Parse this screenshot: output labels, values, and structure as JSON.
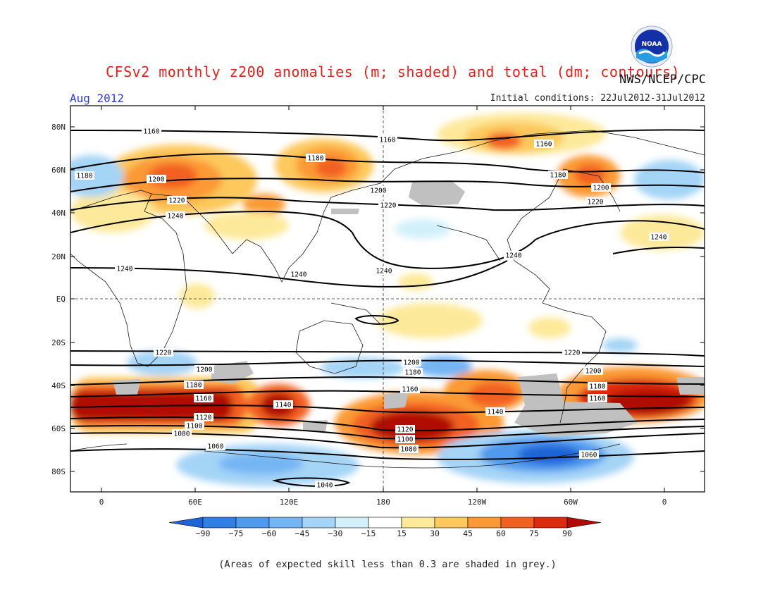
{
  "header": {
    "title": "CFSv2 monthly z200 anomalies (m; shaded) and total (dm; contours)",
    "month": "Aug 2012",
    "agency": "NWS/NCEP/CPC",
    "initial_conditions": "Initial conditions: 22Jul2012-31Jul2012",
    "logo_text": "NOAA"
  },
  "axes": {
    "lat_ticks": [
      "80N",
      "60N",
      "40N",
      "20N",
      "EQ",
      "20S",
      "40S",
      "60S",
      "80S"
    ],
    "lon_ticks": [
      "0",
      "60E",
      "120E",
      "180",
      "120W",
      "60W",
      "0"
    ]
  },
  "colorbar": {
    "levels": [
      "-90",
      "-75",
      "-60",
      "-45",
      "-30",
      "-15",
      "15",
      "30",
      "45",
      "60",
      "75",
      "90"
    ],
    "colors": [
      "#1e64d6",
      "#2f7fe6",
      "#4f99ee",
      "#74b5f4",
      "#a4d4f6",
      "#d2f0fa",
      "#ffffff",
      "#fde99a",
      "#fdc85c",
      "#fb9a34",
      "#f26021",
      "#dc2a0f",
      "#b00a05"
    ]
  },
  "contour_labels": [
    {
      "text": "1160"
    },
    {
      "text": "1160"
    },
    {
      "text": "1160"
    },
    {
      "text": "1180"
    },
    {
      "text": "1180"
    },
    {
      "text": "1180"
    },
    {
      "text": "1200"
    },
    {
      "text": "1200"
    },
    {
      "text": "1200"
    },
    {
      "text": "1220"
    },
    {
      "text": "1220"
    },
    {
      "text": "1220"
    },
    {
      "text": "1240"
    },
    {
      "text": "1240"
    },
    {
      "text": "1240"
    },
    {
      "text": "1240"
    },
    {
      "text": "1240"
    },
    {
      "text": "1240"
    },
    {
      "text": "1220"
    },
    {
      "text": "1220"
    },
    {
      "text": "1200"
    },
    {
      "text": "1200"
    },
    {
      "text": "1200"
    },
    {
      "text": "1180"
    },
    {
      "text": "1180"
    },
    {
      "text": "1180"
    },
    {
      "text": "1160"
    },
    {
      "text": "1160"
    },
    {
      "text": "1160"
    },
    {
      "text": "1140"
    },
    {
      "text": "1140"
    },
    {
      "text": "1120"
    },
    {
      "text": "1120"
    },
    {
      "text": "1100"
    },
    {
      "text": "1100"
    },
    {
      "text": "1080"
    },
    {
      "text": "1080"
    },
    {
      "text": "1060"
    },
    {
      "text": "1060"
    },
    {
      "text": "1040"
    }
  ],
  "footnote": "(Areas of expected skill less than 0.3 are shaded in grey.)"
}
